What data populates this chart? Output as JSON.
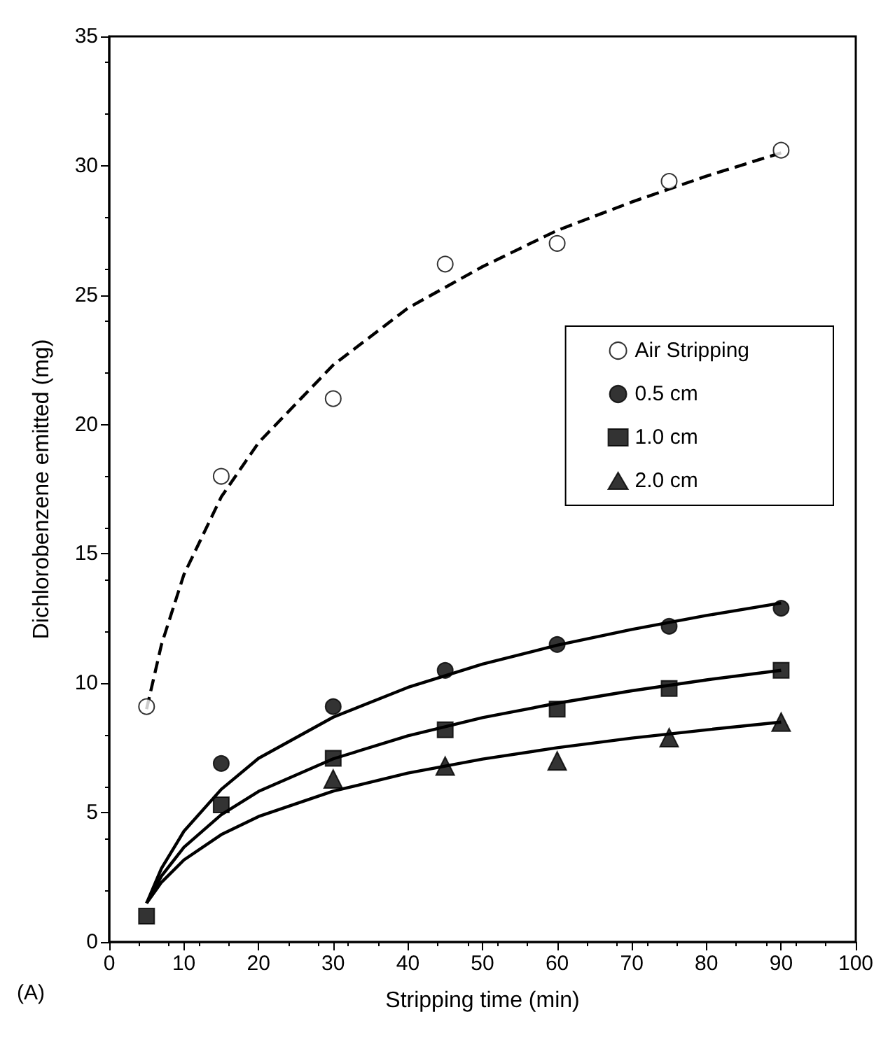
{
  "chart_data": {
    "type": "scatter",
    "xlabel": "Stripping time (min)",
    "ylabel": "Dichlorobenzene emitted (mg)",
    "annotations": [
      "(A)"
    ],
    "xlim": [
      0,
      100
    ],
    "xticks": [
      0,
      10,
      20,
      30,
      40,
      50,
      60,
      70,
      80,
      90,
      100
    ],
    "ylim": [
      0,
      35
    ],
    "yticks": [
      0,
      5,
      10,
      15,
      20,
      25,
      30,
      35
    ],
    "grid": false,
    "legend": "right",
    "x": [
      5,
      15,
      30,
      45,
      60,
      75,
      90
    ],
    "series": [
      {
        "name": "Air Stripping",
        "color": "#000000",
        "marker": "open-circle",
        "values": [
          9.1,
          18.0,
          21.0,
          26.2,
          27.0,
          29.4,
          30.6
        ]
      },
      {
        "name": "0.5 cm",
        "color": "#000000",
        "marker": "circle",
        "values": [
          null,
          6.9,
          9.1,
          10.5,
          11.5,
          12.2,
          12.9
        ]
      },
      {
        "name": "1.0 cm",
        "color": "#000000",
        "marker": "square",
        "values": [
          1.0,
          5.3,
          7.1,
          8.2,
          9.0,
          9.8,
          10.5
        ]
      },
      {
        "name": "2.0 cm",
        "color": "#000000",
        "marker": "triangle",
        "values": [
          null,
          null,
          6.3,
          6.8,
          7.0,
          7.9,
          8.5
        ]
      },
      {
        "type": "line",
        "color": "#000000",
        "line_style": "dashed",
        "x": [
          5,
          7,
          10,
          15,
          20,
          30,
          40,
          50,
          60,
          70,
          80,
          90
        ],
        "values": [
          9.0,
          11.5,
          14.2,
          17.2,
          19.3,
          22.3,
          24.5,
          26.1,
          27.5,
          28.6,
          29.6,
          30.5
        ]
      },
      {
        "type": "line",
        "color": "#000000",
        "line_style": "solid",
        "x": [
          5,
          7,
          10,
          15,
          20,
          30,
          40,
          50,
          60,
          70,
          80,
          90
        ],
        "values": [
          1.5,
          2.85,
          4.28,
          5.9,
          7.1,
          8.69,
          9.84,
          10.74,
          11.47,
          12.08,
          12.62,
          13.1
        ]
      },
      {
        "type": "line",
        "color": "#000000",
        "line_style": "solid",
        "x": [
          5,
          7,
          10,
          15,
          20,
          30,
          40,
          50,
          60,
          70,
          80,
          90
        ],
        "values": [
          1.5,
          2.55,
          3.66,
          4.92,
          5.82,
          7.08,
          7.97,
          8.67,
          9.23,
          9.71,
          10.13,
          10.5
        ]
      },
      {
        "type": "line",
        "color": "#000000",
        "line_style": "solid",
        "x": [
          5,
          7,
          10,
          15,
          20,
          30,
          40,
          50,
          60,
          70,
          80,
          90
        ],
        "values": [
          1.5,
          2.31,
          3.17,
          4.15,
          4.85,
          5.83,
          6.53,
          7.07,
          7.51,
          7.88,
          8.2,
          8.5
        ]
      }
    ]
  }
}
